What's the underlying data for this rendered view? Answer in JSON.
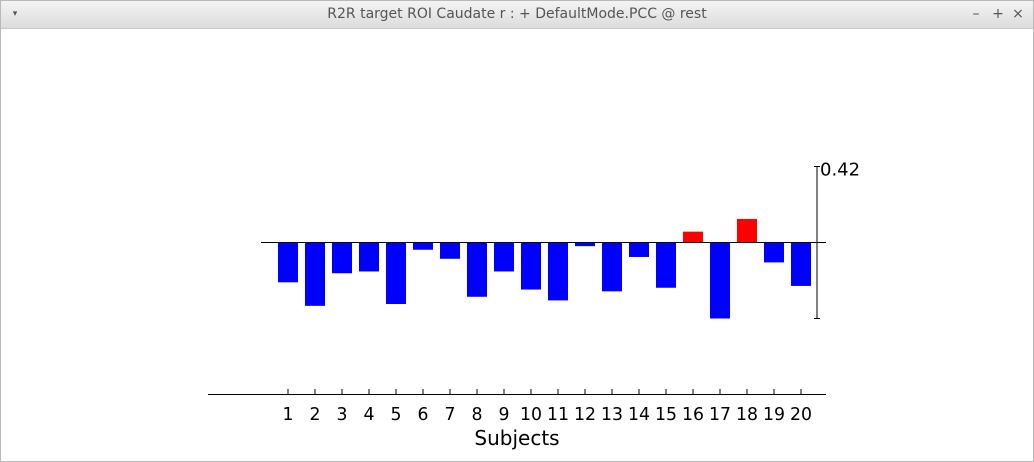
{
  "window": {
    "title": "R2R target ROI Caudate r : + DefaultMode.PCC  @ rest",
    "menu_icon": "▾",
    "minimize_icon": "–",
    "maximize_icon": "+",
    "close_icon": "×"
  },
  "chart_data": {
    "type": "bar",
    "title": "",
    "xlabel": "Subjects",
    "ylabel": "",
    "categories": [
      "1",
      "2",
      "3",
      "4",
      "5",
      "6",
      "7",
      "8",
      "9",
      "10",
      "11",
      "12",
      "13",
      "14",
      "15",
      "16",
      "17",
      "18",
      "19",
      "20"
    ],
    "values": [
      -0.22,
      -0.35,
      -0.17,
      -0.16,
      -0.34,
      -0.04,
      -0.09,
      -0.3,
      -0.16,
      -0.26,
      -0.32,
      -0.02,
      -0.27,
      -0.08,
      -0.25,
      0.06,
      -0.42,
      0.13,
      -0.11,
      -0.24
    ],
    "scale_label": "0.42",
    "scale_value": 0.42,
    "positive_color": "#ff0000",
    "negative_color": "#0000ff"
  }
}
